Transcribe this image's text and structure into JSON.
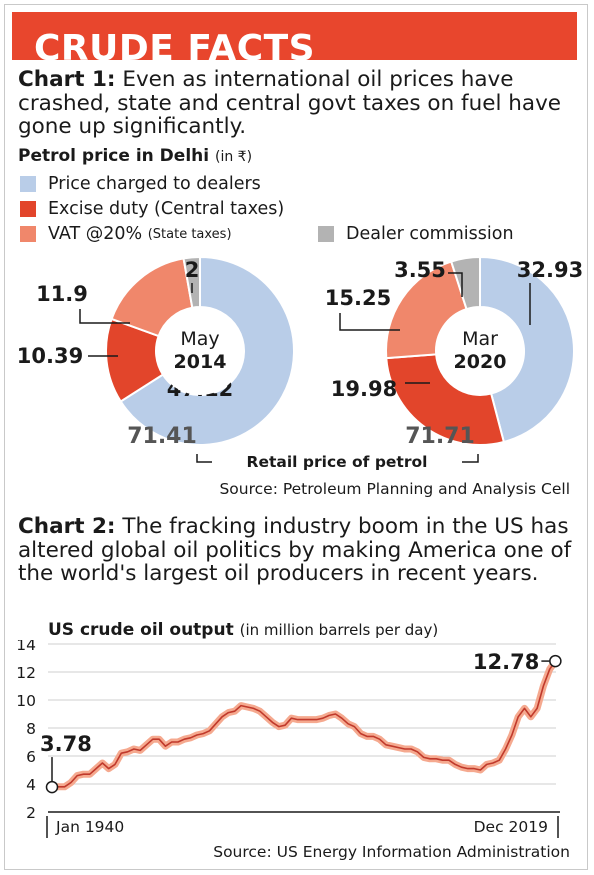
{
  "banner": {
    "title": "CRUDE FACTS"
  },
  "chart1": {
    "label": "Chart 1:",
    "text": " Even as international oil prices have crashed, state and central govt taxes on fuel have gone up significantly.",
    "subtitle": "Petrol price in Delhi",
    "unit": "(in ₹)",
    "source": "Source: Petroleum Planning and Analysis Cell",
    "retail_label": "Retail price of petrol"
  },
  "chart2": {
    "label": "Chart 2:",
    "text": " The fracking industry boom in the US has altered global oil politics by making America one of the world's largest oil producers in recent years.",
    "subtitle": "US crude oil output",
    "unit": "(in million barrels per day)",
    "source": "Source: US Energy Information Administration"
  },
  "colors": {
    "banner": "#e8462d",
    "dealers": "#b9cde8",
    "excise": "#e2452b",
    "vat": "#f0876b",
    "commission": "#b3b3b3",
    "line_outer": "#f5a98f",
    "line_inner": "#c0392b"
  },
  "chart_data": [
    {
      "type": "pie",
      "legend": [
        {
          "name": "Price charged to dealers",
          "color": "#b9cde8"
        },
        {
          "name": "Excise duty (Central taxes)",
          "color": "#e2452b"
        },
        {
          "name": "VAT @20%",
          "note": "(State taxes)",
          "color": "#f0876b"
        },
        {
          "name": "Dealer commission",
          "color": "#b3b3b3"
        }
      ],
      "pies": [
        {
          "center_label": [
            "May",
            "2014"
          ],
          "total": "71.41",
          "slices": [
            {
              "series": "Price charged to dealers",
              "value": 47.12,
              "label": "47.12"
            },
            {
              "series": "Excise duty (Central taxes)",
              "value": 10.39,
              "label": "10.39"
            },
            {
              "series": "VAT @20%",
              "value": 11.9,
              "label": "11.9"
            },
            {
              "series": "Dealer commission",
              "value": 2,
              "label": "2"
            }
          ]
        },
        {
          "center_label": [
            "Mar",
            "2020"
          ],
          "total": "71.71",
          "slices": [
            {
              "series": "Price charged to dealers",
              "value": 32.93,
              "label": "32.93"
            },
            {
              "series": "Excise duty (Central taxes)",
              "value": 19.98,
              "label": "19.98"
            },
            {
              "series": "VAT @20%",
              "value": 15.25,
              "label": "15.25"
            },
            {
              "series": "Dealer commission",
              "value": 3.55,
              "label": "3.55"
            }
          ]
        }
      ]
    },
    {
      "type": "line",
      "ylim": [
        2,
        14
      ],
      "yticks": [
        2,
        4,
        6,
        8,
        10,
        12,
        14
      ],
      "xlim": [
        1940,
        2020
      ],
      "x_labels": [
        "Jan 1940",
        "Dec 2019"
      ],
      "annotations": [
        {
          "x": 1940,
          "y": 3.78,
          "label": "3.78"
        },
        {
          "x": 2019.9,
          "y": 12.78,
          "label": "12.78"
        }
      ],
      "x": [
        1940,
        1941,
        1942,
        1943,
        1944,
        1945,
        1946,
        1947,
        1948,
        1949,
        1950,
        1951,
        1952,
        1953,
        1954,
        1955,
        1956,
        1957,
        1958,
        1959,
        1960,
        1961,
        1962,
        1963,
        1964,
        1965,
        1966,
        1967,
        1968,
        1969,
        1970,
        1971,
        1972,
        1973,
        1974,
        1975,
        1976,
        1977,
        1978,
        1979,
        1980,
        1981,
        1982,
        1983,
        1984,
        1985,
        1986,
        1987,
        1988,
        1989,
        1990,
        1991,
        1992,
        1993,
        1994,
        1995,
        1996,
        1997,
        1998,
        1999,
        2000,
        2001,
        2002,
        2003,
        2004,
        2005,
        2006,
        2007,
        2008,
        2009,
        2010,
        2011,
        2012,
        2013,
        2014,
        2015,
        2016,
        2017,
        2018,
        2019,
        2019.9
      ],
      "y": [
        3.78,
        3.8,
        3.8,
        4.1,
        4.6,
        4.7,
        4.7,
        5.1,
        5.5,
        5.1,
        5.4,
        6.2,
        6.3,
        6.5,
        6.4,
        6.8,
        7.2,
        7.2,
        6.7,
        7.0,
        7.0,
        7.2,
        7.3,
        7.5,
        7.6,
        7.8,
        8.3,
        8.8,
        9.1,
        9.2,
        9.6,
        9.5,
        9.4,
        9.2,
        8.8,
        8.4,
        8.1,
        8.2,
        8.7,
        8.6,
        8.6,
        8.6,
        8.6,
        8.7,
        8.9,
        9.0,
        8.7,
        8.3,
        8.1,
        7.6,
        7.4,
        7.4,
        7.2,
        6.8,
        6.7,
        6.6,
        6.5,
        6.5,
        6.3,
        5.9,
        5.8,
        5.8,
        5.7,
        5.7,
        5.4,
        5.2,
        5.1,
        5.1,
        5.0,
        5.4,
        5.5,
        5.7,
        6.5,
        7.5,
        8.8,
        9.4,
        8.8,
        9.4,
        11.0,
        12.2,
        12.78
      ]
    }
  ]
}
